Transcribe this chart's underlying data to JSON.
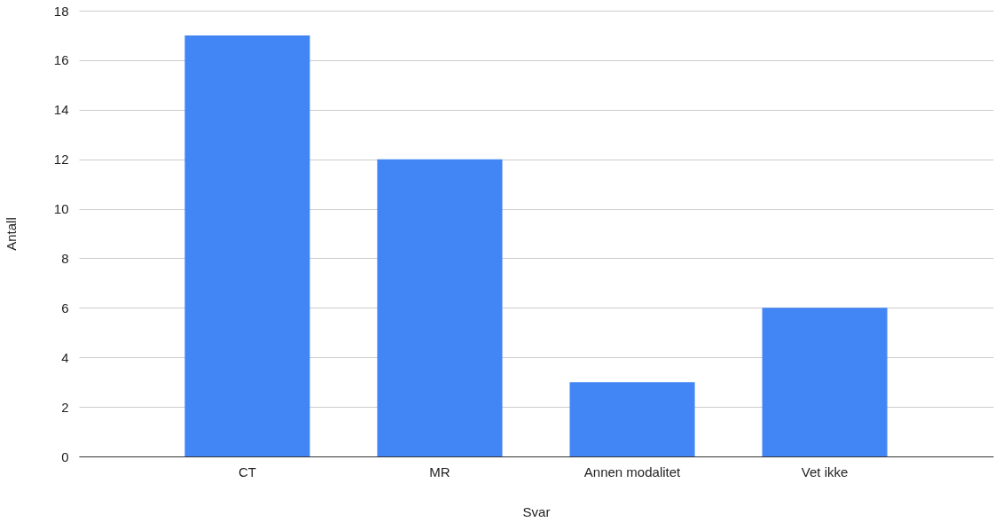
{
  "chart_data": {
    "type": "bar",
    "xlabel": "Svar",
    "ylabel": "Antall",
    "categories": [
      "CT",
      "MR",
      "Annen modalitet",
      "Vet ikke"
    ],
    "values": [
      17,
      12,
      3,
      6
    ],
    "color": "#4285f4",
    "ylim": [
      0,
      18
    ],
    "yticks": [
      0,
      2,
      4,
      6,
      8,
      10,
      12,
      14,
      16,
      18
    ],
    "grid": "y"
  }
}
